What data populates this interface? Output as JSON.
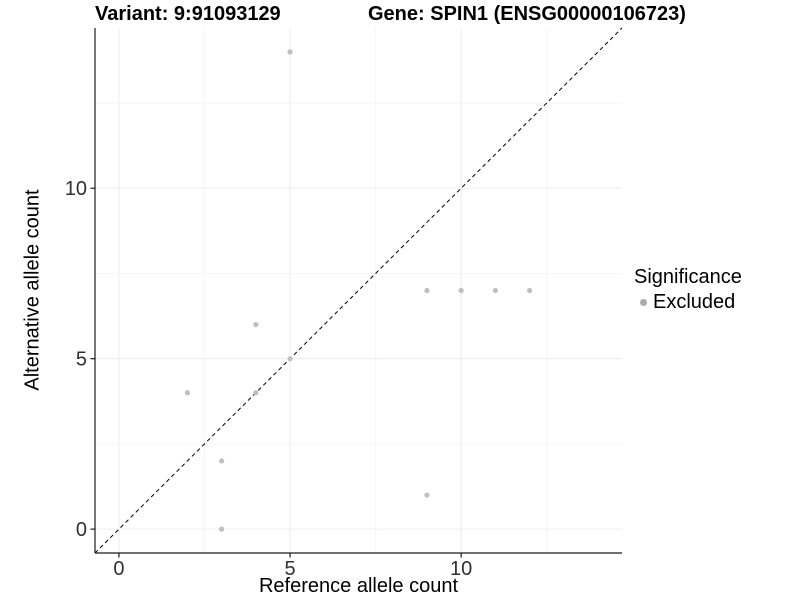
{
  "colors": {
    "point_gray": "#bfbfbf",
    "legend_dot_gray": "#ababab",
    "grid_major": "#ededed",
    "grid_minor": "#f6f6f6",
    "axis_line": "#1a1a1a",
    "tick_text": "#303030",
    "identity_line": "#000000"
  },
  "chart_data": {
    "type": "scatter",
    "title_left": "Variant: 9:91093129",
    "title_right": "Gene: SPIN1 (ENSG00000106723)",
    "xlabel": "Reference allele count",
    "ylabel": "Alternative allele count",
    "xlim": [
      -0.7,
      14.7
    ],
    "ylim": [
      -0.7,
      14.7
    ],
    "x_ticks": [
      0,
      5,
      10
    ],
    "y_ticks": [
      0,
      5,
      10
    ],
    "x_minor_ticks": [
      2.5,
      7.5,
      12.5
    ],
    "y_minor_ticks": [
      2.5,
      7.5,
      12.5
    ],
    "grid": "on",
    "identity_line": {
      "style": "dashed",
      "from": [
        -0.7,
        -0.7
      ],
      "to": [
        14.7,
        14.7
      ]
    },
    "series": [
      {
        "name": "Excluded",
        "color": "#bfbfbf",
        "points": [
          [
            2,
            4
          ],
          [
            3,
            0
          ],
          [
            3,
            2
          ],
          [
            4,
            4
          ],
          [
            4,
            6
          ],
          [
            5,
            5
          ],
          [
            5,
            14
          ],
          [
            9,
            1
          ],
          [
            9,
            7
          ],
          [
            10,
            7
          ],
          [
            11,
            7
          ],
          [
            12,
            7
          ]
        ]
      }
    ],
    "legend": {
      "title": "Significance",
      "position": "right",
      "entries": [
        {
          "label": "Excluded",
          "color": "#ababab"
        }
      ]
    }
  }
}
